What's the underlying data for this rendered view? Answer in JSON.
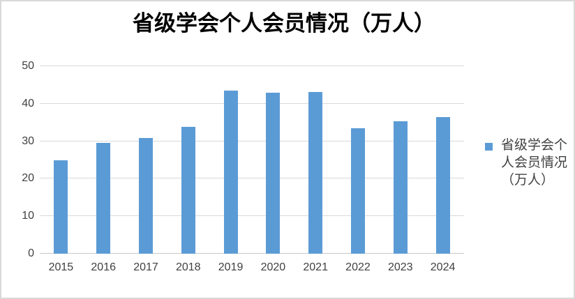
{
  "chart_data": {
    "type": "bar",
    "title": "省级学会个人会员情况（万人）",
    "categories": [
      "2015",
      "2016",
      "2017",
      "2018",
      "2019",
      "2020",
      "2021",
      "2022",
      "2023",
      "2024"
    ],
    "series": [
      {
        "name": "省级学会个人会员情况（万人）",
        "values": [
          25.0,
          29.6,
          30.8,
          33.9,
          43.5,
          43.0,
          43.2,
          33.5,
          35.3,
          36.5
        ]
      }
    ],
    "xlabel": "",
    "ylabel": "",
    "ylim": [
      0,
      50
    ],
    "yticks": [
      0,
      10,
      20,
      30,
      40,
      50
    ],
    "grid": true,
    "legend_position": "right"
  },
  "legend": {
    "lines": [
      "省级学会个",
      "人会员情况",
      "（万人）"
    ]
  },
  "colors": {
    "bar": "#5B9BD5",
    "gridline": "#D9D9D9",
    "axis_line": "#C9C9C9",
    "axis_text": "#404040",
    "title_text": "#000000",
    "legend_text": "#404040",
    "frame_border": "#D9D9D9",
    "background": "#FFFFFF"
  }
}
